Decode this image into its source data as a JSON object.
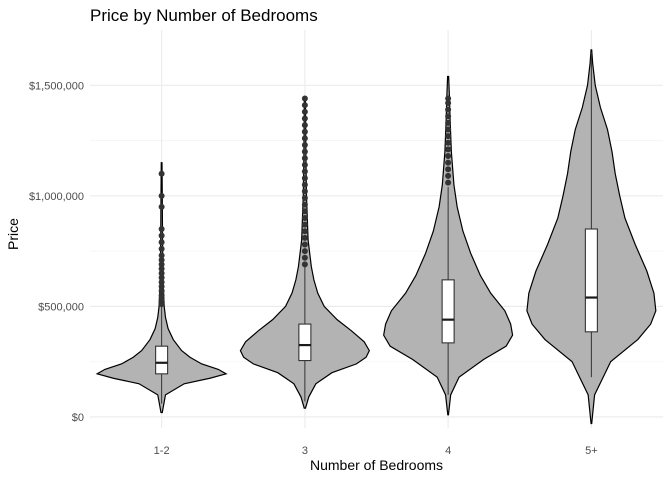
{
  "chart_data": {
    "type": "violin",
    "title": "Price by Number of Bedrooms",
    "xlabel": "Number of Bedrooms",
    "ylabel": "Price",
    "ylim": [
      -50000,
      1750000
    ],
    "y_ticks": [
      {
        "value": 0,
        "label": "$0"
      },
      {
        "value": 500000,
        "label": "$500,000"
      },
      {
        "value": 1000000,
        "label": "$1,000,000"
      },
      {
        "value": 1500000,
        "label": "$1,500,000"
      }
    ],
    "grid": true,
    "fill_color": "#b3b3b3",
    "categories": [
      "1-2",
      "3",
      "4",
      "5+"
    ],
    "groups": [
      {
        "category": "1-2",
        "min": 20000,
        "max": 1150000,
        "q1": 195000,
        "median": 245000,
        "q3": 320000,
        "whisker_low": 60000,
        "whisker_high": 500000,
        "density": [
          [
            20000,
            0.01
          ],
          [
            100000,
            0.06
          ],
          [
            150000,
            0.35
          ],
          [
            175000,
            0.75
          ],
          [
            195000,
            1.0
          ],
          [
            215000,
            0.88
          ],
          [
            240000,
            0.62
          ],
          [
            270000,
            0.44
          ],
          [
            300000,
            0.31
          ],
          [
            350000,
            0.18
          ],
          [
            400000,
            0.1
          ],
          [
            450000,
            0.06
          ],
          [
            500000,
            0.04
          ],
          [
            600000,
            0.025
          ],
          [
            700000,
            0.018
          ],
          [
            850000,
            0.013
          ],
          [
            1000000,
            0.01
          ],
          [
            1150000,
            0.006
          ]
        ],
        "outliers": [
          510000,
          530000,
          550000,
          570000,
          590000,
          610000,
          630000,
          650000,
          670000,
          690000,
          710000,
          730000,
          760000,
          790000,
          820000,
          850000,
          950000,
          1000000,
          1100000
        ]
      },
      {
        "category": "3",
        "min": 40000,
        "max": 1440000,
        "q1": 255000,
        "median": 325000,
        "q3": 420000,
        "whisker_low": 70000,
        "whisker_high": 680000,
        "density": [
          [
            40000,
            0.01
          ],
          [
            90000,
            0.06
          ],
          [
            150000,
            0.17
          ],
          [
            200000,
            0.42
          ],
          [
            240000,
            0.8
          ],
          [
            270000,
            0.95
          ],
          [
            300000,
            1.0
          ],
          [
            340000,
            0.92
          ],
          [
            390000,
            0.72
          ],
          [
            440000,
            0.5
          ],
          [
            500000,
            0.3
          ],
          [
            560000,
            0.2
          ],
          [
            620000,
            0.14
          ],
          [
            680000,
            0.1
          ],
          [
            800000,
            0.05
          ],
          [
            1000000,
            0.025
          ],
          [
            1200000,
            0.015
          ],
          [
            1440000,
            0.008
          ]
        ],
        "outliers": [
          690000,
          720000,
          750000,
          780000,
          810000,
          840000,
          870000,
          900000,
          930000,
          960000,
          990000,
          1020000,
          1050000,
          1080000,
          1110000,
          1140000,
          1170000,
          1200000,
          1230000,
          1260000,
          1290000,
          1320000,
          1350000,
          1380000,
          1410000,
          1440000
        ]
      },
      {
        "category": "4",
        "min": 10000,
        "max": 1540000,
        "q1": 335000,
        "median": 440000,
        "q3": 620000,
        "whisker_low": 100000,
        "whisker_high": 1040000,
        "density": [
          [
            10000,
            0.005
          ],
          [
            100000,
            0.04
          ],
          [
            180000,
            0.17
          ],
          [
            260000,
            0.55
          ],
          [
            320000,
            0.9
          ],
          [
            370000,
            1.0
          ],
          [
            420000,
            0.97
          ],
          [
            480000,
            0.88
          ],
          [
            560000,
            0.66
          ],
          [
            640000,
            0.5
          ],
          [
            740000,
            0.35
          ],
          [
            840000,
            0.23
          ],
          [
            950000,
            0.14
          ],
          [
            1050000,
            0.09
          ],
          [
            1200000,
            0.05
          ],
          [
            1350000,
            0.03
          ],
          [
            1450000,
            0.02
          ],
          [
            1540000,
            0.008
          ]
        ],
        "outliers": [
          1060000,
          1090000,
          1120000,
          1150000,
          1180000,
          1210000,
          1240000,
          1270000,
          1300000,
          1330000,
          1360000,
          1390000,
          1420000,
          1440000
        ]
      },
      {
        "category": "5+",
        "min": -30000,
        "max": 1660000,
        "q1": 385000,
        "median": 540000,
        "q3": 850000,
        "whisker_low": 180000,
        "whisker_high": 1650000,
        "density": [
          [
            -30000,
            0.005
          ],
          [
            100000,
            0.05
          ],
          [
            250000,
            0.3
          ],
          [
            350000,
            0.72
          ],
          [
            420000,
            0.92
          ],
          [
            480000,
            1.0
          ],
          [
            560000,
            0.97
          ],
          [
            660000,
            0.86
          ],
          [
            780000,
            0.68
          ],
          [
            900000,
            0.52
          ],
          [
            1000000,
            0.44
          ],
          [
            1100000,
            0.37
          ],
          [
            1200000,
            0.32
          ],
          [
            1300000,
            0.25
          ],
          [
            1400000,
            0.14
          ],
          [
            1500000,
            0.06
          ],
          [
            1600000,
            0.02
          ],
          [
            1660000,
            0.005
          ]
        ],
        "outliers": []
      }
    ]
  }
}
